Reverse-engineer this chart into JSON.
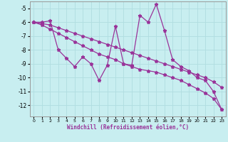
{
  "xlabel": "Windchill (Refroidissement éolien,°C)",
  "bg_color": "#c8eef0",
  "grid_color": "#b0dde0",
  "line_color": "#993399",
  "x": [
    0,
    1,
    2,
    3,
    4,
    5,
    6,
    7,
    8,
    9,
    10,
    11,
    12,
    13,
    14,
    15,
    16,
    17,
    18,
    19,
    20,
    21,
    22,
    23
  ],
  "y_main": [
    -6.0,
    -6.0,
    -5.9,
    -8.0,
    -8.6,
    -9.2,
    -8.5,
    -9.0,
    -10.2,
    -9.1,
    -6.3,
    -9.0,
    -9.1,
    -5.5,
    -6.0,
    -4.7,
    -6.6,
    -8.7,
    -9.2,
    -9.5,
    -10.0,
    -10.2,
    -11.0,
    -12.3
  ],
  "y_upper": [
    -6.0,
    -6.1,
    -6.2,
    -6.4,
    -6.6,
    -6.8,
    -7.0,
    -7.2,
    -7.4,
    -7.6,
    -7.8,
    -8.0,
    -8.2,
    -8.4,
    -8.6,
    -8.8,
    -9.0,
    -9.2,
    -9.4,
    -9.6,
    -9.8,
    -10.0,
    -10.3,
    -10.7
  ],
  "y_lower": [
    -6.0,
    -6.2,
    -6.5,
    -6.8,
    -7.1,
    -7.4,
    -7.7,
    -8.0,
    -8.3,
    -8.5,
    -8.7,
    -9.0,
    -9.2,
    -9.4,
    -9.5,
    -9.6,
    -9.8,
    -10.0,
    -10.2,
    -10.5,
    -10.8,
    -11.1,
    -11.5,
    -12.3
  ],
  "ylim": [
    -12.8,
    -4.5
  ],
  "xlim": [
    -0.5,
    23.5
  ],
  "yticks": [
    -12,
    -11,
    -10,
    -9,
    -8,
    -7,
    -6,
    -5
  ],
  "xticks": [
    0,
    1,
    2,
    3,
    4,
    5,
    6,
    7,
    8,
    9,
    10,
    11,
    12,
    13,
    14,
    15,
    16,
    17,
    18,
    19,
    20,
    21,
    22,
    23
  ]
}
